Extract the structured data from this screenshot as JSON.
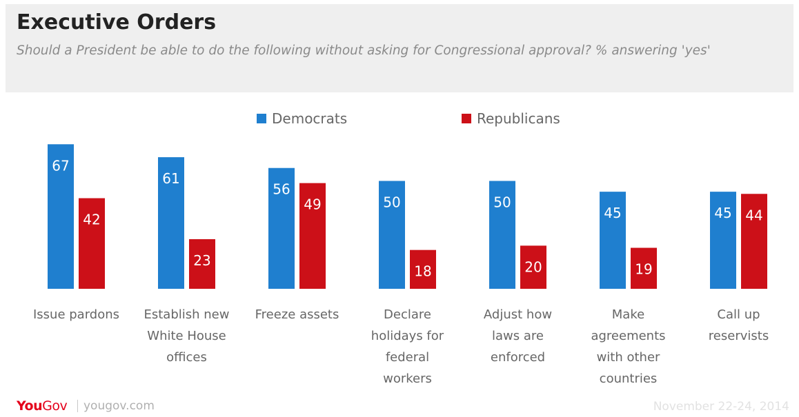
{
  "header": {
    "title": "Executive Orders",
    "subtitle": "Should a President be able to do the following without asking for Congressional approval? % answering 'yes'"
  },
  "footer": {
    "logo_you": "You",
    "logo_gov": "Gov",
    "site": "yougov.com",
    "date": "November 22-24, 2014"
  },
  "colors": {
    "democrats": "#1f7fcf",
    "republicans": "#cc1018",
    "axis_label": "#666666",
    "bar_label": "#ffffff"
  },
  "chart_data": {
    "type": "bar",
    "title": "Executive Orders",
    "subtitle": "Should a President be able to do the following without asking for Congressional approval? % answering 'yes'",
    "categories": [
      [
        "Issue pardons"
      ],
      [
        "Establish new",
        "White House",
        "offices"
      ],
      [
        "Freeze assets"
      ],
      [
        "Declare",
        "holidays for",
        "federal",
        "workers"
      ],
      [
        "Adjust how",
        "laws are",
        "enforced"
      ],
      [
        "Make",
        "agreements",
        "with other",
        "countries"
      ],
      [
        "Call up",
        "reservists"
      ]
    ],
    "series": [
      {
        "name": "Democrats",
        "values": [
          67,
          61,
          56,
          50,
          50,
          45,
          45
        ]
      },
      {
        "name": "Republicans",
        "values": [
          42,
          23,
          49,
          18,
          20,
          19,
          44
        ]
      }
    ],
    "ylim": [
      0,
      67
    ],
    "grid": false,
    "legend": "top-center",
    "data_labels": true
  }
}
